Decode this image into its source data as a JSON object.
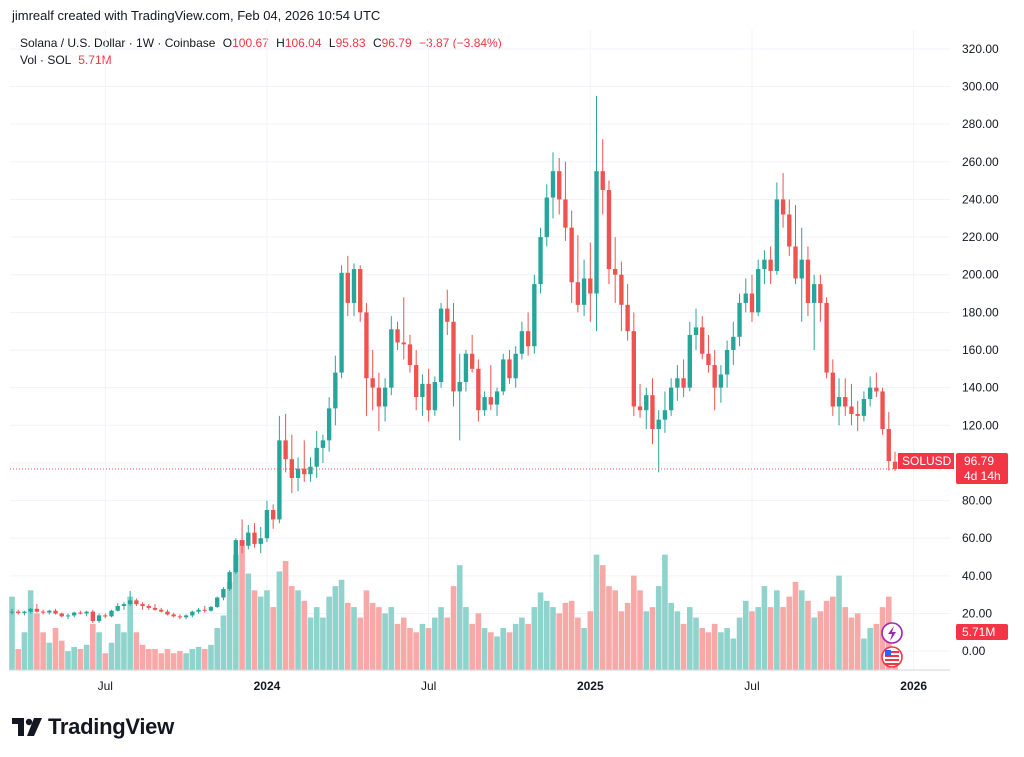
{
  "header": {
    "attribution": "jimrealf created with TradingView.com, Feb 04, 2026 10:54 UTC"
  },
  "legend": {
    "symbol": "Solana / U.S. Dollar · 1W · Coinbase",
    "o_label": "O",
    "o_value": "100.67",
    "h_label": "H",
    "h_value": "106.04",
    "l_label": "L",
    "l_value": "95.83",
    "c_label": "C",
    "c_value": "96.79",
    "change": "−3.87 (−3.84%)",
    "vol_label": "Vol · SOL",
    "vol_value": "5.71M"
  },
  "price_tag": {
    "symbol": "SOLUSD",
    "price": "96.79",
    "countdown": "4d 14h"
  },
  "volume_tag": "5.71M",
  "logo_text": "TradingView",
  "colors": {
    "up": "#26a69a",
    "down": "#ef5350",
    "vol_up": "#8fd3cc",
    "vol_down": "#f7a9a7",
    "grid": "#f0f3fa",
    "text": "#131722",
    "tag_red": "#f23645"
  },
  "chart_data": {
    "type": "candlestick",
    "title": "Solana / U.S. Dollar · 1W · Coinbase",
    "ylabel": "",
    "xlabel": "",
    "ylim": [
      -10,
      330
    ],
    "grid": true,
    "price_ticks": [
      "320.00",
      "300.00",
      "280.00",
      "260.00",
      "240.00",
      "220.00",
      "200.00",
      "180.00",
      "160.00",
      "140.00",
      "120.00",
      "100.00",
      "80.00",
      "60.00",
      "40.00",
      "20.00",
      "0.00"
    ],
    "x_ticks": [
      {
        "label": "Jul",
        "index": 15
      },
      {
        "label": "2024",
        "index": 41
      },
      {
        "label": "Jul",
        "index": 67
      },
      {
        "label": "2025",
        "index": 93
      },
      {
        "label": "Jul",
        "index": 119
      },
      {
        "label": "2026",
        "index": 145
      }
    ],
    "candles": [
      {
        "o": 20.5,
        "h": 22.5,
        "l": 19.5,
        "c": 21.0,
        "v": 35
      },
      {
        "o": 21.0,
        "h": 22.0,
        "l": 19.5,
        "c": 20.3,
        "v": 10
      },
      {
        "o": 20.3,
        "h": 21.5,
        "l": 19.0,
        "c": 21.0,
        "v": 18
      },
      {
        "o": 21.0,
        "h": 23.0,
        "l": 20.0,
        "c": 22.5,
        "v": 38
      },
      {
        "o": 22.5,
        "h": 25.0,
        "l": 20.5,
        "c": 21.0,
        "v": 27
      },
      {
        "o": 21.0,
        "h": 22.0,
        "l": 19.5,
        "c": 20.5,
        "v": 18
      },
      {
        "o": 20.5,
        "h": 22.0,
        "l": 19.5,
        "c": 21.5,
        "v": 13
      },
      {
        "o": 21.5,
        "h": 22.5,
        "l": 19.5,
        "c": 20.0,
        "v": 20
      },
      {
        "o": 20.0,
        "h": 20.5,
        "l": 18.0,
        "c": 18.5,
        "v": 14
      },
      {
        "o": 18.5,
        "h": 20.0,
        "l": 17.0,
        "c": 19.0,
        "v": 9
      },
      {
        "o": 19.0,
        "h": 21.0,
        "l": 18.0,
        "c": 20.5,
        "v": 11
      },
      {
        "o": 20.5,
        "h": 21.5,
        "l": 19.5,
        "c": 20.0,
        "v": 10
      },
      {
        "o": 20.0,
        "h": 21.5,
        "l": 18.5,
        "c": 21.0,
        "v": 12
      },
      {
        "o": 21.0,
        "h": 22.0,
        "l": 15.0,
        "c": 16.0,
        "v": 22
      },
      {
        "o": 16.0,
        "h": 20.0,
        "l": 15.0,
        "c": 19.0,
        "v": 18
      },
      {
        "o": 19.0,
        "h": 20.0,
        "l": 17.5,
        "c": 18.5,
        "v": 8
      },
      {
        "o": 18.5,
        "h": 22.0,
        "l": 18.0,
        "c": 21.5,
        "v": 13
      },
      {
        "o": 21.5,
        "h": 25.5,
        "l": 21.0,
        "c": 24.0,
        "v": 22
      },
      {
        "o": 24.0,
        "h": 26.0,
        "l": 22.0,
        "c": 25.0,
        "v": 18
      },
      {
        "o": 25.0,
        "h": 32.0,
        "l": 24.0,
        "c": 27.0,
        "v": 35
      },
      {
        "o": 27.0,
        "h": 28.0,
        "l": 24.0,
        "c": 25.0,
        "v": 18
      },
      {
        "o": 25.0,
        "h": 26.0,
        "l": 22.0,
        "c": 24.0,
        "v": 12
      },
      {
        "o": 24.0,
        "h": 25.0,
        "l": 22.0,
        "c": 23.0,
        "v": 10
      },
      {
        "o": 23.0,
        "h": 25.0,
        "l": 21.5,
        "c": 22.0,
        "v": 10
      },
      {
        "o": 22.0,
        "h": 23.0,
        "l": 20.5,
        "c": 21.0,
        "v": 8
      },
      {
        "o": 21.0,
        "h": 22.0,
        "l": 19.0,
        "c": 19.5,
        "v": 10
      },
      {
        "o": 19.5,
        "h": 20.5,
        "l": 18.0,
        "c": 18.5,
        "v": 8
      },
      {
        "o": 18.5,
        "h": 19.5,
        "l": 17.0,
        "c": 18.0,
        "v": 9
      },
      {
        "o": 18.0,
        "h": 19.5,
        "l": 17.0,
        "c": 19.0,
        "v": 8
      },
      {
        "o": 19.0,
        "h": 21.5,
        "l": 18.0,
        "c": 21.0,
        "v": 10
      },
      {
        "o": 21.0,
        "h": 23.0,
        "l": 20.0,
        "c": 22.0,
        "v": 11
      },
      {
        "o": 22.0,
        "h": 24.0,
        "l": 20.5,
        "c": 21.5,
        "v": 10
      },
      {
        "o": 21.5,
        "h": 24.0,
        "l": 21.0,
        "c": 23.5,
        "v": 12
      },
      {
        "o": 23.5,
        "h": 29.0,
        "l": 23.0,
        "c": 28.5,
        "v": 20
      },
      {
        "o": 28.5,
        "h": 34.0,
        "l": 27.0,
        "c": 33.0,
        "v": 26
      },
      {
        "o": 33.0,
        "h": 43.0,
        "l": 32.0,
        "c": 42.0,
        "v": 42
      },
      {
        "o": 42.0,
        "h": 60.0,
        "l": 41.0,
        "c": 59.0,
        "v": 55
      },
      {
        "o": 59.0,
        "h": 70.0,
        "l": 52.0,
        "c": 56.0,
        "v": 62
      },
      {
        "o": 56.0,
        "h": 67.0,
        "l": 54.0,
        "c": 63.0,
        "v": 46
      },
      {
        "o": 63.0,
        "h": 68.0,
        "l": 55.0,
        "c": 57.0,
        "v": 38
      },
      {
        "o": 57.0,
        "h": 66.0,
        "l": 52.0,
        "c": 60.0,
        "v": 35
      },
      {
        "o": 60.0,
        "h": 80.0,
        "l": 58.0,
        "c": 75.0,
        "v": 38
      },
      {
        "o": 75.0,
        "h": 78.0,
        "l": 65.0,
        "c": 70.0,
        "v": 30
      },
      {
        "o": 70.0,
        "h": 125.0,
        "l": 68.0,
        "c": 112.0,
        "v": 47
      },
      {
        "o": 112.0,
        "h": 126.0,
        "l": 95.0,
        "c": 102.0,
        "v": 52
      },
      {
        "o": 102.0,
        "h": 115.0,
        "l": 84.0,
        "c": 92.0,
        "v": 40
      },
      {
        "o": 92.0,
        "h": 103.0,
        "l": 85.0,
        "c": 97.0,
        "v": 38
      },
      {
        "o": 97.0,
        "h": 112.0,
        "l": 90.0,
        "c": 94.0,
        "v": 33
      },
      {
        "o": 94.0,
        "h": 103.0,
        "l": 90.0,
        "c": 98.0,
        "v": 25
      },
      {
        "o": 98.0,
        "h": 117.0,
        "l": 92.0,
        "c": 108.0,
        "v": 30
      },
      {
        "o": 108.0,
        "h": 115.0,
        "l": 100.0,
        "c": 112.0,
        "v": 25
      },
      {
        "o": 112.0,
        "h": 135.0,
        "l": 106.0,
        "c": 129.0,
        "v": 35
      },
      {
        "o": 129.0,
        "h": 157.0,
        "l": 120.0,
        "c": 148.0,
        "v": 40
      },
      {
        "o": 148.0,
        "h": 205.0,
        "l": 145.0,
        "c": 201.0,
        "v": 43
      },
      {
        "o": 201.0,
        "h": 210.0,
        "l": 178.0,
        "c": 185.0,
        "v": 32
      },
      {
        "o": 185.0,
        "h": 206.0,
        "l": 178.0,
        "c": 203.0,
        "v": 30
      },
      {
        "o": 203.0,
        "h": 205.0,
        "l": 175.0,
        "c": 180.0,
        "v": 25
      },
      {
        "o": 180.0,
        "h": 185.0,
        "l": 125.0,
        "c": 145.0,
        "v": 38
      },
      {
        "o": 145.0,
        "h": 160.0,
        "l": 128.0,
        "c": 140.0,
        "v": 32
      },
      {
        "o": 140.0,
        "h": 148.0,
        "l": 117.0,
        "c": 130.0,
        "v": 30
      },
      {
        "o": 130.0,
        "h": 145.0,
        "l": 122.0,
        "c": 140.0,
        "v": 27
      },
      {
        "o": 140.0,
        "h": 178.0,
        "l": 136.0,
        "c": 171.0,
        "v": 30
      },
      {
        "o": 171.0,
        "h": 175.0,
        "l": 160.0,
        "c": 164.0,
        "v": 22
      },
      {
        "o": 164.0,
        "h": 188.0,
        "l": 155.0,
        "c": 163.0,
        "v": 25
      },
      {
        "o": 163.0,
        "h": 168.0,
        "l": 148.0,
        "c": 152.0,
        "v": 20
      },
      {
        "o": 152.0,
        "h": 160.0,
        "l": 128.0,
        "c": 135.0,
        "v": 18
      },
      {
        "o": 135.0,
        "h": 147.0,
        "l": 125.0,
        "c": 142.0,
        "v": 22
      },
      {
        "o": 142.0,
        "h": 150.0,
        "l": 122.0,
        "c": 128.0,
        "v": 20
      },
      {
        "o": 128.0,
        "h": 146.0,
        "l": 125.0,
        "c": 143.0,
        "v": 25
      },
      {
        "o": 143.0,
        "h": 185.0,
        "l": 140.0,
        "c": 182.0,
        "v": 30
      },
      {
        "o": 182.0,
        "h": 192.0,
        "l": 168.0,
        "c": 175.0,
        "v": 25
      },
      {
        "o": 175.0,
        "h": 185.0,
        "l": 130.0,
        "c": 138.0,
        "v": 40
      },
      {
        "o": 138.0,
        "h": 158.0,
        "l": 112.0,
        "c": 143.0,
        "v": 50
      },
      {
        "o": 143.0,
        "h": 160.0,
        "l": 138.0,
        "c": 158.0,
        "v": 30
      },
      {
        "o": 158.0,
        "h": 168.0,
        "l": 148.0,
        "c": 150.0,
        "v": 22
      },
      {
        "o": 150.0,
        "h": 155.0,
        "l": 122.0,
        "c": 128.0,
        "v": 27
      },
      {
        "o": 128.0,
        "h": 138.0,
        "l": 125.0,
        "c": 135.0,
        "v": 20
      },
      {
        "o": 135.0,
        "h": 152.0,
        "l": 128.0,
        "c": 131.0,
        "v": 18
      },
      {
        "o": 131.0,
        "h": 140.0,
        "l": 125.0,
        "c": 138.0,
        "v": 16
      },
      {
        "o": 138.0,
        "h": 158.0,
        "l": 136.0,
        "c": 155.0,
        "v": 20
      },
      {
        "o": 155.0,
        "h": 160.0,
        "l": 142.0,
        "c": 145.0,
        "v": 18
      },
      {
        "o": 145.0,
        "h": 162.0,
        "l": 140.0,
        "c": 158.0,
        "v": 22
      },
      {
        "o": 158.0,
        "h": 175.0,
        "l": 155.0,
        "c": 170.0,
        "v": 25
      },
      {
        "o": 170.0,
        "h": 180.0,
        "l": 157.0,
        "c": 162.0,
        "v": 22
      },
      {
        "o": 162.0,
        "h": 200.0,
        "l": 158.0,
        "c": 195.0,
        "v": 30
      },
      {
        "o": 195.0,
        "h": 225.0,
        "l": 190.0,
        "c": 220.0,
        "v": 37
      },
      {
        "o": 220.0,
        "h": 248.0,
        "l": 215.0,
        "c": 241.0,
        "v": 33
      },
      {
        "o": 241.0,
        "h": 265.0,
        "l": 230.0,
        "c": 255.0,
        "v": 30
      },
      {
        "o": 255.0,
        "h": 262.0,
        "l": 232.0,
        "c": 240.0,
        "v": 27
      },
      {
        "o": 240.0,
        "h": 260.0,
        "l": 218.0,
        "c": 225.0,
        "v": 32
      },
      {
        "o": 225.0,
        "h": 234.0,
        "l": 185.0,
        "c": 196.0,
        "v": 33
      },
      {
        "o": 196.0,
        "h": 221.0,
        "l": 180.0,
        "c": 184.0,
        "v": 25
      },
      {
        "o": 184.0,
        "h": 208.0,
        "l": 178.0,
        "c": 198.0,
        "v": 20
      },
      {
        "o": 198.0,
        "h": 217.0,
        "l": 175.0,
        "c": 190.0,
        "v": 28
      },
      {
        "o": 190.0,
        "h": 295.0,
        "l": 170.0,
        "c": 255.0,
        "v": 55
      },
      {
        "o": 255.0,
        "h": 272.0,
        "l": 232.0,
        "c": 245.0,
        "v": 50
      },
      {
        "o": 245.0,
        "h": 250.0,
        "l": 195.0,
        "c": 203.0,
        "v": 40
      },
      {
        "o": 203.0,
        "h": 220.0,
        "l": 185.0,
        "c": 200.0,
        "v": 38
      },
      {
        "o": 200.0,
        "h": 207.0,
        "l": 170.0,
        "c": 184.0,
        "v": 28
      },
      {
        "o": 184.0,
        "h": 195.0,
        "l": 165.0,
        "c": 170.0,
        "v": 32
      },
      {
        "o": 170.0,
        "h": 180.0,
        "l": 125.0,
        "c": 130.0,
        "v": 45
      },
      {
        "o": 130.0,
        "h": 142.0,
        "l": 124.0,
        "c": 128.0,
        "v": 38
      },
      {
        "o": 128.0,
        "h": 140.0,
        "l": 118.0,
        "c": 136.0,
        "v": 28
      },
      {
        "o": 136.0,
        "h": 145.0,
        "l": 110.0,
        "c": 118.0,
        "v": 30
      },
      {
        "o": 118.0,
        "h": 128.0,
        "l": 95.0,
        "c": 123.0,
        "v": 40
      },
      {
        "o": 123.0,
        "h": 138.0,
        "l": 116.0,
        "c": 128.0,
        "v": 55
      },
      {
        "o": 128.0,
        "h": 145.0,
        "l": 125.0,
        "c": 140.0,
        "v": 32
      },
      {
        "o": 140.0,
        "h": 152.0,
        "l": 133.0,
        "c": 145.0,
        "v": 28
      },
      {
        "o": 145.0,
        "h": 155.0,
        "l": 135.0,
        "c": 140.0,
        "v": 22
      },
      {
        "o": 140.0,
        "h": 175.0,
        "l": 138.0,
        "c": 168.0,
        "v": 30
      },
      {
        "o": 168.0,
        "h": 182.0,
        "l": 160.0,
        "c": 172.0,
        "v": 25
      },
      {
        "o": 172.0,
        "h": 178.0,
        "l": 155.0,
        "c": 158.0,
        "v": 20
      },
      {
        "o": 158.0,
        "h": 168.0,
        "l": 148.0,
        "c": 152.0,
        "v": 18
      },
      {
        "o": 152.0,
        "h": 160.0,
        "l": 128.0,
        "c": 140.0,
        "v": 22
      },
      {
        "o": 140.0,
        "h": 152.0,
        "l": 132.0,
        "c": 147.0,
        "v": 18
      },
      {
        "o": 147.0,
        "h": 165.0,
        "l": 140.0,
        "c": 160.0,
        "v": 20
      },
      {
        "o": 160.0,
        "h": 175.0,
        "l": 152.0,
        "c": 167.0,
        "v": 15
      },
      {
        "o": 167.0,
        "h": 190.0,
        "l": 162.0,
        "c": 185.0,
        "v": 25
      },
      {
        "o": 185.0,
        "h": 198.0,
        "l": 180.0,
        "c": 190.0,
        "v": 33
      },
      {
        "o": 190.0,
        "h": 200.0,
        "l": 175.0,
        "c": 180.0,
        "v": 28
      },
      {
        "o": 180.0,
        "h": 208.0,
        "l": 178.0,
        "c": 203.0,
        "v": 30
      },
      {
        "o": 203.0,
        "h": 213.0,
        "l": 195.0,
        "c": 208.0,
        "v": 40
      },
      {
        "o": 208.0,
        "h": 215.0,
        "l": 195.0,
        "c": 202.0,
        "v": 30
      },
      {
        "o": 202.0,
        "h": 249.0,
        "l": 200.0,
        "c": 240.0,
        "v": 38
      },
      {
        "o": 240.0,
        "h": 254.0,
        "l": 225.0,
        "c": 232.0,
        "v": 30
      },
      {
        "o": 232.0,
        "h": 240.0,
        "l": 210.0,
        "c": 215.0,
        "v": 35
      },
      {
        "o": 215.0,
        "h": 237.0,
        "l": 195.0,
        "c": 198.0,
        "v": 42
      },
      {
        "o": 198.0,
        "h": 225.0,
        "l": 175.0,
        "c": 208.0,
        "v": 38
      },
      {
        "o": 208.0,
        "h": 215.0,
        "l": 178.0,
        "c": 185.0,
        "v": 33
      },
      {
        "o": 185.0,
        "h": 200.0,
        "l": 160.0,
        "c": 195.0,
        "v": 25
      },
      {
        "o": 195.0,
        "h": 200.0,
        "l": 175.0,
        "c": 185.0,
        "v": 28
      },
      {
        "o": 185.0,
        "h": 188.0,
        "l": 145.0,
        "c": 148.0,
        "v": 33
      },
      {
        "o": 148.0,
        "h": 155.0,
        "l": 125.0,
        "c": 130.0,
        "v": 35
      },
      {
        "o": 130.0,
        "h": 145.0,
        "l": 120.0,
        "c": 135.0,
        "v": 45
      },
      {
        "o": 135.0,
        "h": 145.0,
        "l": 125.0,
        "c": 130.0,
        "v": 30
      },
      {
        "o": 130.0,
        "h": 142.0,
        "l": 120.0,
        "c": 126.0,
        "v": 25
      },
      {
        "o": 126.0,
        "h": 133.0,
        "l": 117.0,
        "c": 125.0,
        "v": 27
      },
      {
        "o": 125.0,
        "h": 138.0,
        "l": 122.0,
        "c": 134.0,
        "v": 15
      },
      {
        "o": 134.0,
        "h": 146.0,
        "l": 130.0,
        "c": 140.0,
        "v": 20
      },
      {
        "o": 140.0,
        "h": 148.0,
        "l": 135.0,
        "c": 138.0,
        "v": 22
      },
      {
        "o": 138.0,
        "h": 140.0,
        "l": 115.0,
        "c": 118.0,
        "v": 30
      },
      {
        "o": 118.0,
        "h": 127.0,
        "l": 96.0,
        "c": 101.0,
        "v": 35
      },
      {
        "o": 100.67,
        "h": 106.04,
        "l": 95.83,
        "c": 96.79,
        "v": 5.71
      }
    ]
  }
}
